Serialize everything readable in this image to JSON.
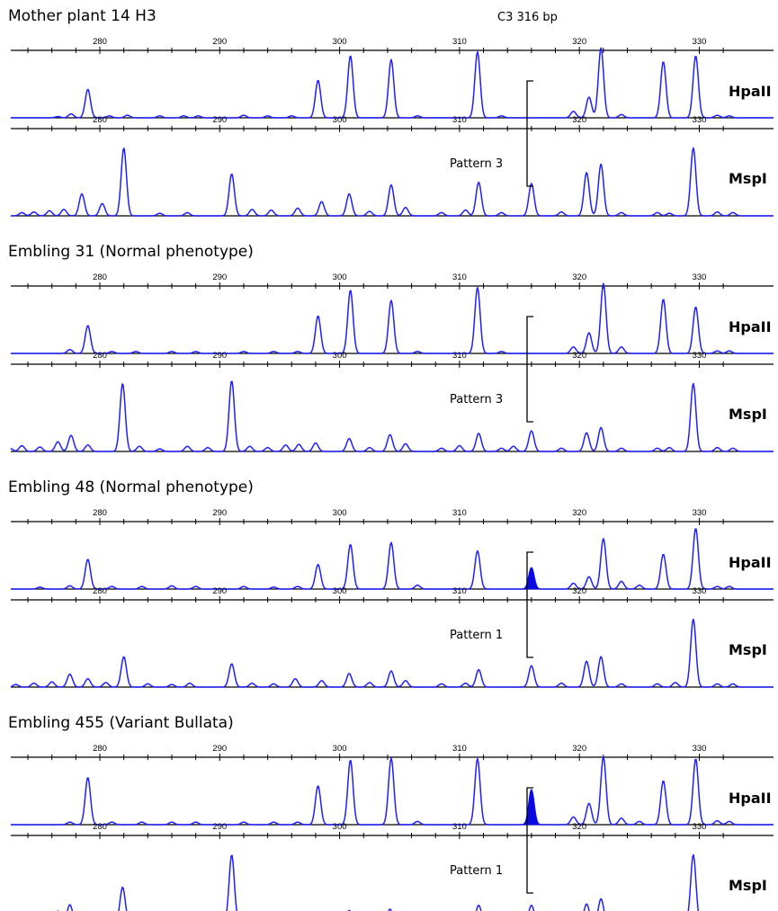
{
  "figure": {
    "marker_label": "C3 316 bp",
    "tick_values": [
      280,
      290,
      300,
      310,
      320,
      330
    ],
    "colors": {
      "trace": "#1f1fff",
      "filled_peak": "#0a0ae0",
      "axis": "#000000"
    }
  },
  "chart_data": {
    "type": "line",
    "x_unit": "bp",
    "xlim": [
      272,
      333
    ],
    "panels": [
      {
        "title": "Mother plant 14 H3",
        "pattern_label": "Pattern 3",
        "lanes": [
          {
            "enzyme": "HpaII",
            "filled_peak": null,
            "peaks": [
              [
                276.5,
                0.02
              ],
              [
                277.6,
                0.06
              ],
              [
                279,
                0.44
              ],
              [
                280.8,
                0.03
              ],
              [
                282.3,
                0.04
              ],
              [
                285,
                0.03
              ],
              [
                287,
                0.03
              ],
              [
                288.2,
                0.03
              ],
              [
                292,
                0.04
              ],
              [
                294,
                0.03
              ],
              [
                296,
                0.03
              ],
              [
                298.2,
                0.58
              ],
              [
                300.9,
                0.96
              ],
              [
                304.3,
                0.9
              ],
              [
                306.5,
                0.03
              ],
              [
                311.5,
                1.02
              ],
              [
                313.5,
                0.03
              ],
              [
                319.5,
                0.1
              ],
              [
                320.8,
                0.32
              ],
              [
                321.8,
                1.08
              ],
              [
                323.5,
                0.05
              ],
              [
                327,
                0.87
              ],
              [
                329.7,
                0.96
              ],
              [
                331.5,
                0.04
              ],
              [
                332.5,
                0.03
              ]
            ]
          },
          {
            "enzyme": "MspI",
            "filled_peak": null,
            "peaks": [
              [
                273.5,
                0.05
              ],
              [
                274.5,
                0.06
              ],
              [
                275.8,
                0.08
              ],
              [
                277,
                0.1
              ],
              [
                278.5,
                0.34
              ],
              [
                280.2,
                0.19
              ],
              [
                282,
                1.05
              ],
              [
                285,
                0.04
              ],
              [
                287.3,
                0.05
              ],
              [
                291,
                0.65
              ],
              [
                292.7,
                0.1
              ],
              [
                294.3,
                0.09
              ],
              [
                296.5,
                0.12
              ],
              [
                298.5,
                0.22
              ],
              [
                300.8,
                0.34
              ],
              [
                302.5,
                0.07
              ],
              [
                304.3,
                0.48
              ],
              [
                305.5,
                0.13
              ],
              [
                308.5,
                0.05
              ],
              [
                310.5,
                0.09
              ],
              [
                311.6,
                0.52
              ],
              [
                313.5,
                0.05
              ],
              [
                316,
                0.5
              ],
              [
                318.5,
                0.06
              ],
              [
                320.6,
                0.67
              ],
              [
                321.8,
                0.8
              ],
              [
                323.5,
                0.05
              ],
              [
                326.5,
                0.05
              ],
              [
                327.5,
                0.04
              ],
              [
                329.5,
                1.05
              ],
              [
                331.5,
                0.06
              ],
              [
                332.8,
                0.05
              ]
            ]
          }
        ]
      },
      {
        "title": "Embling  31 (Normal phenotype)",
        "pattern_label": "Pattern 3",
        "lanes": [
          {
            "enzyme": "HpaII",
            "filled_peak": null,
            "peaks": [
              [
                277.5,
                0.06
              ],
              [
                279,
                0.43
              ],
              [
                281,
                0.03
              ],
              [
                283,
                0.03
              ],
              [
                286,
                0.03
              ],
              [
                288,
                0.03
              ],
              [
                292,
                0.03
              ],
              [
                294.5,
                0.03
              ],
              [
                296.5,
                0.03
              ],
              [
                298.2,
                0.58
              ],
              [
                300.9,
                0.98
              ],
              [
                304.3,
                0.82
              ],
              [
                306.5,
                0.03
              ],
              [
                311.5,
                1.02
              ],
              [
                313.5,
                0.03
              ],
              [
                319.5,
                0.1
              ],
              [
                320.8,
                0.32
              ],
              [
                322,
                1.08
              ],
              [
                323.5,
                0.1
              ],
              [
                327,
                0.84
              ],
              [
                329.7,
                0.72
              ],
              [
                331.5,
                0.04
              ],
              [
                332.5,
                0.04
              ]
            ]
          },
          {
            "enzyme": "MspI",
            "filled_peak": null,
            "peaks": [
              [
                272.5,
                0.05
              ],
              [
                273.5,
                0.09
              ],
              [
                275,
                0.07
              ],
              [
                276.5,
                0.15
              ],
              [
                277.6,
                0.25
              ],
              [
                279,
                0.1
              ],
              [
                281.9,
                1.05
              ],
              [
                283.3,
                0.08
              ],
              [
                285,
                0.04
              ],
              [
                287.3,
                0.08
              ],
              [
                289,
                0.06
              ],
              [
                291,
                1.1
              ],
              [
                292.5,
                0.08
              ],
              [
                294,
                0.06
              ],
              [
                295.5,
                0.1
              ],
              [
                296.6,
                0.11
              ],
              [
                298,
                0.13
              ],
              [
                300.8,
                0.2
              ],
              [
                302.5,
                0.06
              ],
              [
                304.2,
                0.26
              ],
              [
                305.5,
                0.12
              ],
              [
                308.5,
                0.05
              ],
              [
                310,
                0.09
              ],
              [
                311.6,
                0.28
              ],
              [
                313.5,
                0.05
              ],
              [
                314.5,
                0.08
              ],
              [
                316,
                0.32
              ],
              [
                318.5,
                0.05
              ],
              [
                320.6,
                0.29
              ],
              [
                321.8,
                0.37
              ],
              [
                323.5,
                0.05
              ],
              [
                326.5,
                0.05
              ],
              [
                327.5,
                0.06
              ],
              [
                329.5,
                1.05
              ],
              [
                331.5,
                0.06
              ],
              [
                332.8,
                0.05
              ]
            ]
          }
        ]
      },
      {
        "title": "Embling  48 (Normal phenotype)",
        "pattern_label": "Pattern 1",
        "lanes": [
          {
            "enzyme": "HpaII",
            "filled_peak": 316,
            "peaks": [
              [
                275,
                0.03
              ],
              [
                277.5,
                0.05
              ],
              [
                279,
                0.46
              ],
              [
                281,
                0.04
              ],
              [
                283.5,
                0.04
              ],
              [
                286,
                0.05
              ],
              [
                288,
                0.04
              ],
              [
                292,
                0.04
              ],
              [
                294.5,
                0.03
              ],
              [
                296.5,
                0.04
              ],
              [
                298.2,
                0.38
              ],
              [
                300.9,
                0.69
              ],
              [
                304.3,
                0.72
              ],
              [
                306.5,
                0.06
              ],
              [
                311.5,
                0.59
              ],
              [
                316,
                0.33
              ],
              [
                319.5,
                0.09
              ],
              [
                320.8,
                0.19
              ],
              [
                322,
                0.78
              ],
              [
                323.5,
                0.12
              ],
              [
                325,
                0.06
              ],
              [
                327,
                0.54
              ],
              [
                329.7,
                0.94
              ],
              [
                331.5,
                0.04
              ],
              [
                332.5,
                0.04
              ]
            ]
          },
          {
            "enzyme": "MspI",
            "filled_peak": null,
            "peaks": [
              [
                273,
                0.04
              ],
              [
                274.5,
                0.06
              ],
              [
                276,
                0.08
              ],
              [
                277.5,
                0.2
              ],
              [
                279,
                0.13
              ],
              [
                280.5,
                0.07
              ],
              [
                282,
                0.47
              ],
              [
                284,
                0.05
              ],
              [
                286,
                0.04
              ],
              [
                287.5,
                0.06
              ],
              [
                291,
                0.36
              ],
              [
                292.7,
                0.06
              ],
              [
                294.5,
                0.05
              ],
              [
                296.3,
                0.13
              ],
              [
                298.5,
                0.1
              ],
              [
                300.8,
                0.21
              ],
              [
                302.5,
                0.07
              ],
              [
                304.3,
                0.25
              ],
              [
                305.5,
                0.1
              ],
              [
                308.5,
                0.05
              ],
              [
                310.5,
                0.06
              ],
              [
                311.6,
                0.27
              ],
              [
                316,
                0.33
              ],
              [
                318.5,
                0.06
              ],
              [
                320.6,
                0.4
              ],
              [
                321.8,
                0.47
              ],
              [
                323.5,
                0.05
              ],
              [
                326.5,
                0.05
              ],
              [
                328,
                0.07
              ],
              [
                329.5,
                1.05
              ],
              [
                331.5,
                0.05
              ],
              [
                332.8,
                0.05
              ]
            ]
          }
        ]
      },
      {
        "title": "Embling 455 (Variant Bullata)",
        "pattern_label": "Pattern 1",
        "lanes": [
          {
            "enzyme": "HpaII",
            "filled_peak": 316,
            "peaks": [
              [
                277.5,
                0.04
              ],
              [
                279,
                0.73
              ],
              [
                281,
                0.04
              ],
              [
                283.5,
                0.04
              ],
              [
                286,
                0.04
              ],
              [
                288,
                0.04
              ],
              [
                292,
                0.04
              ],
              [
                294.5,
                0.04
              ],
              [
                296.5,
                0.04
              ],
              [
                298.2,
                0.6
              ],
              [
                300.9,
                1.0
              ],
              [
                304.3,
                1.03
              ],
              [
                306.5,
                0.05
              ],
              [
                311.5,
                1.02
              ],
              [
                316,
                0.54
              ],
              [
                319.5,
                0.12
              ],
              [
                320.8,
                0.33
              ],
              [
                322,
                1.05
              ],
              [
                323.5,
                0.1
              ],
              [
                325,
                0.05
              ],
              [
                327,
                0.68
              ],
              [
                329.7,
                1.02
              ],
              [
                331.5,
                0.06
              ],
              [
                332.5,
                0.05
              ]
            ]
          },
          {
            "enzyme": "MspI",
            "filled_peak": null,
            "peaks": [
              [
                272.5,
                0.06
              ],
              [
                273.5,
                0.13
              ],
              [
                275,
                0.09
              ],
              [
                276.5,
                0.18
              ],
              [
                277.5,
                0.28
              ],
              [
                279,
                0.11
              ],
              [
                281.9,
                0.55
              ],
              [
                283.3,
                0.1
              ],
              [
                285,
                0.07
              ],
              [
                287.3,
                0.08
              ],
              [
                289.5,
                0.06
              ],
              [
                291,
                1.05
              ],
              [
                292.5,
                0.07
              ],
              [
                294,
                0.08
              ],
              [
                295.5,
                0.1
              ],
              [
                296.6,
                0.12
              ],
              [
                298,
                0.11
              ],
              [
                300.8,
                0.19
              ],
              [
                302.5,
                0.05
              ],
              [
                304.2,
                0.21
              ],
              [
                305.5,
                0.1
              ],
              [
                308.5,
                0.06
              ],
              [
                310,
                0.08
              ],
              [
                311.6,
                0.27
              ],
              [
                313.5,
                0.07
              ],
              [
                316,
                0.27
              ],
              [
                318.5,
                0.05
              ],
              [
                320.6,
                0.29
              ],
              [
                321.8,
                0.37
              ],
              [
                323.5,
                0.06
              ],
              [
                326.5,
                0.05
              ],
              [
                328,
                0.08
              ],
              [
                329.5,
                1.05
              ],
              [
                331.5,
                0.06
              ],
              [
                332.8,
                0.05
              ]
            ]
          }
        ]
      }
    ]
  }
}
